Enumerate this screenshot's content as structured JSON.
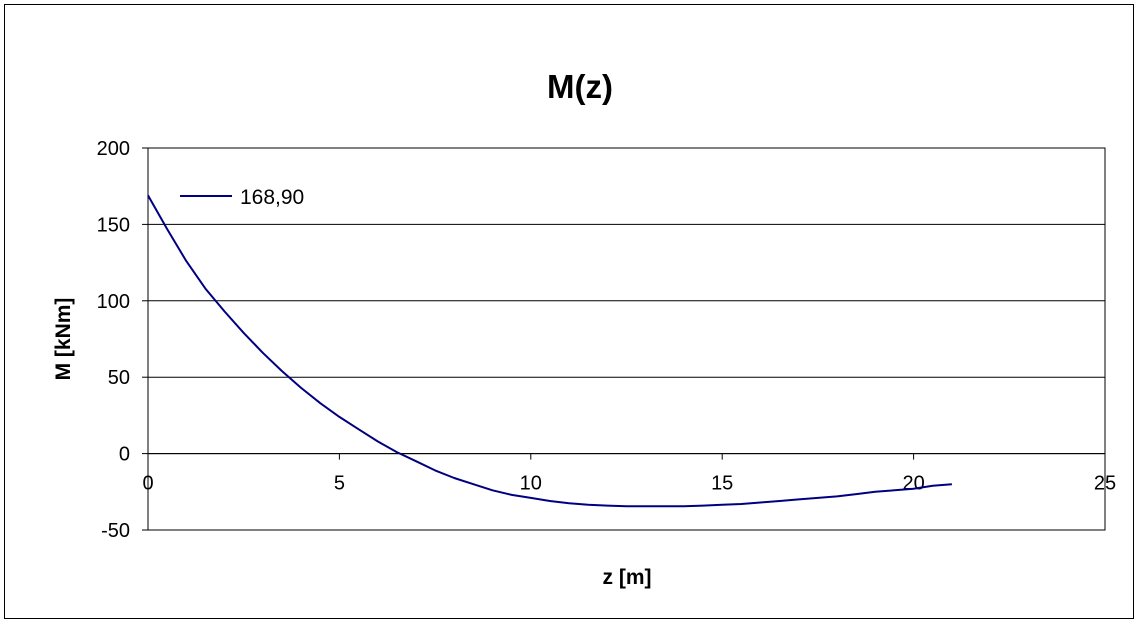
{
  "chart_data": {
    "type": "line",
    "title": "M(z)",
    "xlabel": "z [m]",
    "ylabel": "M [kNm]",
    "xlim": [
      0,
      25
    ],
    "ylim": [
      -50,
      200
    ],
    "xticks": [
      "0",
      "5",
      "10",
      "15",
      "20",
      "25"
    ],
    "yticks": [
      "200",
      "150",
      "100",
      "50",
      "0",
      "-50"
    ],
    "grid": "horizontal",
    "legend_position": "top-left",
    "series": [
      {
        "name": "168,90",
        "color": "#000080",
        "x": [
          0,
          0.5,
          1,
          1.5,
          2,
          2.5,
          3,
          3.5,
          4,
          4.5,
          5,
          5.5,
          6,
          6.5,
          7,
          7.5,
          8,
          8.5,
          9,
          9.5,
          10,
          10.5,
          11,
          11.5,
          12,
          12.5,
          13,
          13.5,
          14,
          14.5,
          15,
          15.5,
          16,
          16.5,
          17,
          17.5,
          18,
          18.5,
          19,
          19.5,
          20,
          20.5,
          21
        ],
        "y": [
          169,
          147,
          126,
          108,
          93,
          79,
          66,
          54,
          43,
          33,
          24,
          16,
          8,
          1,
          -5,
          -11,
          -16,
          -20,
          -24,
          -27,
          -29,
          -31,
          -32.5,
          -33.5,
          -34,
          -34.5,
          -34.5,
          -34.5,
          -34.5,
          -34,
          -33.5,
          -33,
          -32,
          -31,
          -30,
          -29,
          -28,
          -26.5,
          -25,
          -24,
          -23,
          -21,
          -20
        ]
      }
    ]
  }
}
